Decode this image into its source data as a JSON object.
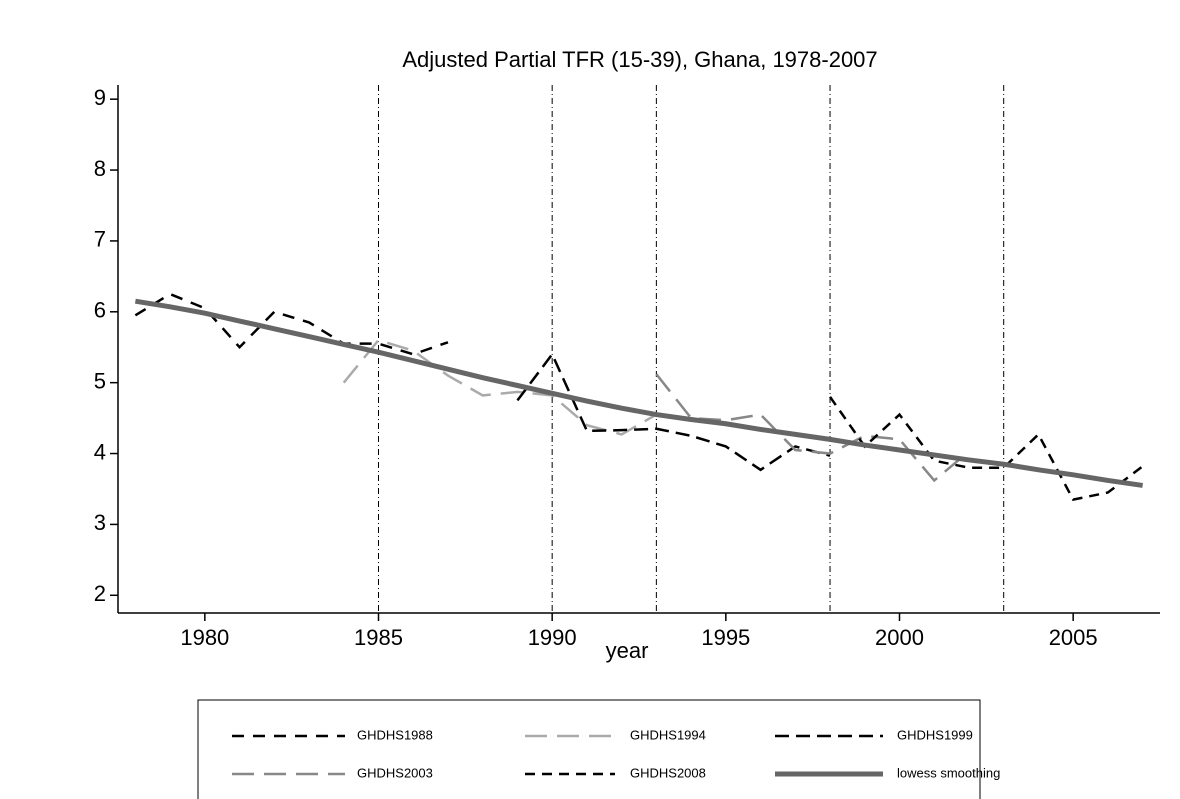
{
  "chart_data": {
    "type": "line",
    "title": "Adjusted Partial TFR (15-39), Ghana, 1978-2007",
    "x_label": "year",
    "x": [
      1978,
      1979,
      1980,
      1981,
      1982,
      1983,
      1984,
      1985,
      1986,
      1987,
      1988,
      1989,
      1990,
      1991,
      1992,
      1993,
      1994,
      1995,
      1996,
      1997,
      1998,
      1999,
      2000,
      2001,
      2002,
      2003,
      2004,
      2005,
      2006,
      2007
    ],
    "series": [
      {
        "name": "GHDHS1988",
        "color": "#000000",
        "dash": "12,9",
        "width": 2.5,
        "values": [
          5.95,
          6.25,
          6.05,
          5.5,
          6.0,
          5.85,
          5.55,
          5.55,
          5.4,
          5.57,
          null,
          null,
          null,
          null,
          null,
          null,
          null,
          null,
          null,
          null,
          null,
          null,
          null,
          null,
          null,
          null,
          null,
          null,
          null,
          null
        ]
      },
      {
        "name": "GHDHS1994",
        "color": "#aaaaaa",
        "dash": "22,10",
        "width": 2.5,
        "values": [
          null,
          null,
          null,
          null,
          null,
          null,
          5.0,
          5.6,
          5.45,
          5.1,
          4.82,
          4.87,
          4.82,
          4.4,
          4.27,
          4.55,
          null,
          null,
          null,
          null,
          null,
          null,
          null,
          null,
          null,
          null,
          null,
          null,
          null,
          null
        ]
      },
      {
        "name": "GHDHS1999",
        "color": "#000000",
        "dash": "14,7",
        "width": 2.5,
        "values": [
          null,
          null,
          null,
          null,
          null,
          null,
          null,
          null,
          null,
          null,
          null,
          4.75,
          5.4,
          4.32,
          4.33,
          4.35,
          4.25,
          4.1,
          3.77,
          4.1,
          3.97,
          null,
          null,
          null,
          null,
          null,
          null,
          null,
          null,
          null
        ]
      },
      {
        "name": "GHDHS2003",
        "color": "#888888",
        "dash": "22,10",
        "width": 2.5,
        "values": [
          null,
          null,
          null,
          null,
          null,
          null,
          null,
          null,
          null,
          null,
          null,
          null,
          null,
          null,
          null,
          5.12,
          4.5,
          4.47,
          4.55,
          4.05,
          4.0,
          4.25,
          4.2,
          3.62,
          4.03,
          null,
          null,
          null,
          null,
          null
        ]
      },
      {
        "name": "GHDHS2008",
        "color": "#000000",
        "dash": "10,7",
        "width": 2.5,
        "values": [
          null,
          null,
          null,
          null,
          null,
          null,
          null,
          null,
          null,
          null,
          null,
          null,
          null,
          null,
          null,
          null,
          null,
          null,
          null,
          null,
          4.8,
          4.1,
          4.55,
          3.9,
          3.8,
          3.8,
          4.27,
          3.35,
          3.45,
          3.82
        ]
      },
      {
        "name": "lowess smoothing",
        "color": "#666666",
        "dash": "none",
        "width": 5,
        "values": [
          6.15,
          6.07,
          5.98,
          5.87,
          5.76,
          5.65,
          5.54,
          5.43,
          5.31,
          5.19,
          5.07,
          4.96,
          4.85,
          4.74,
          4.64,
          4.55,
          4.48,
          4.42,
          4.34,
          4.27,
          4.2,
          4.12,
          4.05,
          3.98,
          3.91,
          3.85,
          3.77,
          3.7,
          3.62,
          3.55
        ]
      }
    ],
    "reference_lines": [
      1985,
      1990,
      1993,
      1998,
      2003
    ],
    "xlim": [
      1977.5,
      2007.5
    ],
    "xticks": [
      1980,
      1985,
      1990,
      1995,
      2000,
      2005
    ],
    "ylim": [
      1.75,
      9.2
    ],
    "yticks": [
      2,
      3,
      4,
      5,
      6,
      7,
      8,
      9
    ],
    "legend": "bottom",
    "legend_columns": 3
  }
}
